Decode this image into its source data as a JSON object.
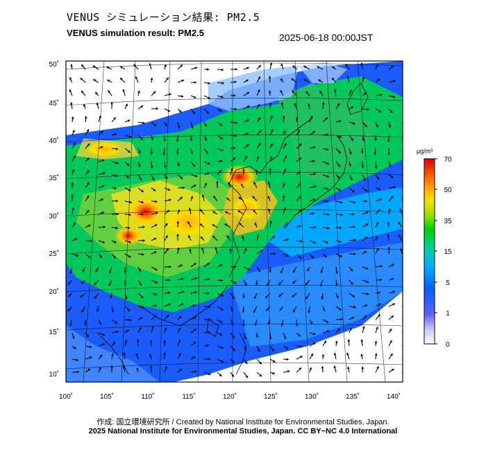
{
  "header": {
    "title_jp": "VENUS シミュレーション結果: PM2.5",
    "title_en": "VENUS simulation result: PM2.5",
    "timestamp": "2025-06-18 00:00JST"
  },
  "map": {
    "lat_labels": [
      "50˚",
      "45˚",
      "40˚",
      "35˚",
      "30˚",
      "25˚",
      "20˚",
      "15˚",
      "10˚"
    ],
    "lon_labels": [
      "100˚",
      "105˚",
      "110˚",
      "115˚",
      "120˚",
      "125˚",
      "130˚",
      "135˚",
      "140˚"
    ],
    "hotspot_colors": {
      "low": "#0040ff",
      "mid": "#00d040",
      "high": "#ffd000",
      "max": "#e00000"
    }
  },
  "colorbar": {
    "unit": "μg/m³",
    "ticks": [
      "70",
      "50",
      "35",
      "15",
      "5",
      "1",
      "0"
    ]
  },
  "footer": {
    "credit_jp": "作成: 国立環境研究所 / Created by National Institute for Environmental Studies, Japan.",
    "copyright": "2025 National Institute for Environmental Studies, Japan. CC BY−NC 4.0 International"
  }
}
